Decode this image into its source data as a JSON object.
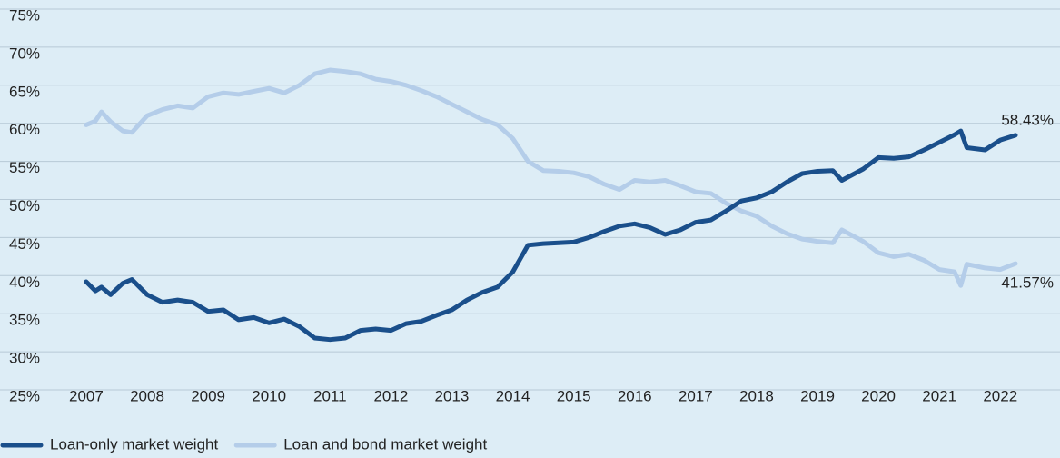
{
  "chart_data": {
    "type": "line",
    "x": [
      2007,
      2007.15,
      2007.25,
      2007.4,
      2007.6,
      2007.75,
      2008,
      2008.25,
      2008.5,
      2008.75,
      2009,
      2009.25,
      2009.5,
      2009.75,
      2010,
      2010.25,
      2010.5,
      2010.75,
      2011,
      2011.25,
      2011.5,
      2011.75,
      2012,
      2012.25,
      2012.5,
      2012.75,
      2013,
      2013.25,
      2013.5,
      2013.75,
      2014,
      2014.25,
      2014.5,
      2014.75,
      2015,
      2015.25,
      2015.5,
      2015.75,
      2016,
      2016.25,
      2016.5,
      2016.75,
      2017,
      2017.25,
      2017.5,
      2017.75,
      2018,
      2018.25,
      2018.5,
      2018.75,
      2019,
      2019.25,
      2019.4,
      2019.75,
      2020,
      2020.25,
      2020.5,
      2020.75,
      2021,
      2021.25,
      2021.35,
      2021.45,
      2021.75,
      2022,
      2022.25
    ],
    "series": [
      {
        "name": "Loan-only market weight",
        "color": "#1a4f8b",
        "end_label": "58.43%",
        "values": [
          39.2,
          38.0,
          38.5,
          37.5,
          39.0,
          39.5,
          37.5,
          36.5,
          36.8,
          36.5,
          35.3,
          35.5,
          34.2,
          34.5,
          33.8,
          34.3,
          33.3,
          31.8,
          31.6,
          31.8,
          32.8,
          33.0,
          32.8,
          33.7,
          34.0,
          34.8,
          35.5,
          36.8,
          37.8,
          38.5,
          40.5,
          44.0,
          44.2,
          44.3,
          44.4,
          45.0,
          45.8,
          46.5,
          46.8,
          46.3,
          45.4,
          46.0,
          47.0,
          47.3,
          48.5,
          49.8,
          50.2,
          51.0,
          52.3,
          53.4,
          53.7,
          53.8,
          52.5,
          54.0,
          55.5,
          55.4,
          55.6,
          56.5,
          57.5,
          58.5,
          59.0,
          56.8,
          56.5,
          57.8,
          58.43
        ]
      },
      {
        "name": "Loan and bond market weight",
        "color": "#b4cde9",
        "end_label": "41.57%",
        "values": [
          59.8,
          60.3,
          61.5,
          60.2,
          59.0,
          58.8,
          61.0,
          61.8,
          62.3,
          62.0,
          63.5,
          64.0,
          63.8,
          64.2,
          64.6,
          64.0,
          65.0,
          66.5,
          67.0,
          66.8,
          66.5,
          65.8,
          65.5,
          65.0,
          64.3,
          63.5,
          62.5,
          61.5,
          60.5,
          59.8,
          58.0,
          55.0,
          53.8,
          53.7,
          53.5,
          53.0,
          52.0,
          51.3,
          52.5,
          52.3,
          52.5,
          51.8,
          51.0,
          50.8,
          49.5,
          48.5,
          47.8,
          46.5,
          45.5,
          44.8,
          44.5,
          44.3,
          46.0,
          44.5,
          43.0,
          42.5,
          42.8,
          42.0,
          40.8,
          40.5,
          38.7,
          41.5,
          41.0,
          40.8,
          41.57
        ]
      }
    ],
    "xlim": [
      2005.6,
      2022.95
    ],
    "xticks": [
      2007,
      2008,
      2009,
      2010,
      2011,
      2012,
      2013,
      2014,
      2015,
      2016,
      2017,
      2018,
      2019,
      2020,
      2021,
      2022
    ],
    "ylim": [
      25,
      75
    ],
    "yticks": [
      {
        "value": 25,
        "label": "25%"
      },
      {
        "value": 30,
        "label": "30%"
      },
      {
        "value": 35,
        "label": "35%"
      },
      {
        "value": 40,
        "label": "40%"
      },
      {
        "value": 45,
        "label": "45%"
      },
      {
        "value": 50,
        "label": "50%"
      },
      {
        "value": 55,
        "label": "55%"
      },
      {
        "value": 60,
        "label": "60%"
      },
      {
        "value": 65,
        "label": "65%"
      },
      {
        "value": 70,
        "label": "70%"
      },
      {
        "value": 75,
        "label": "75%"
      }
    ],
    "grid": true,
    "legend": "bottom-left"
  }
}
